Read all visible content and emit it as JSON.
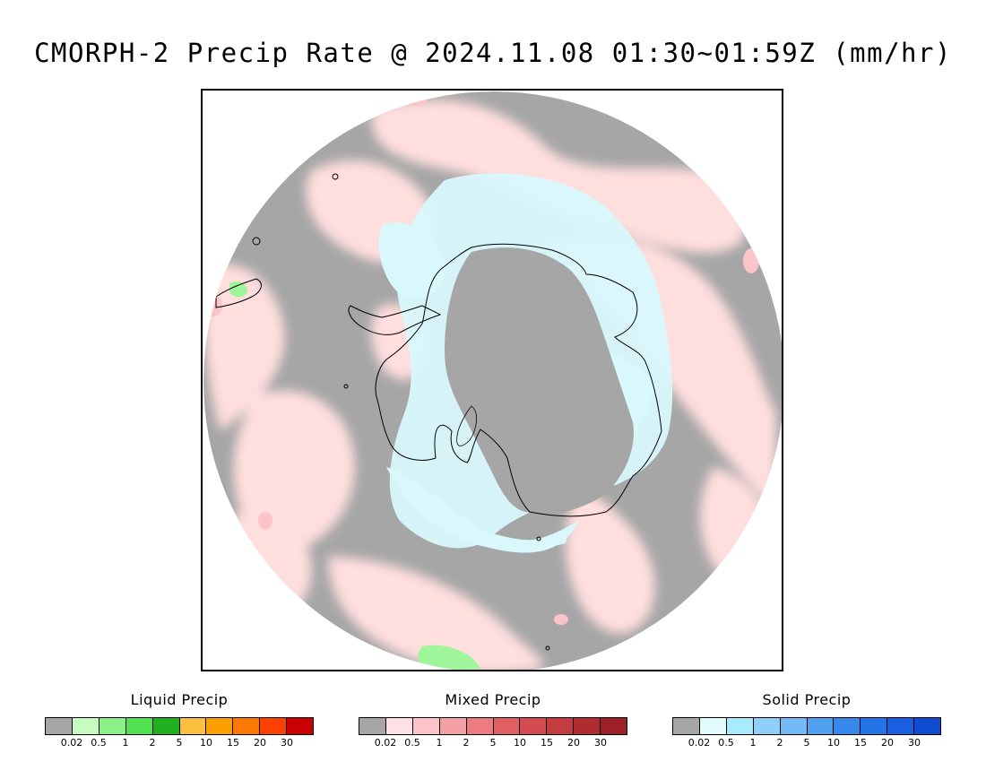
{
  "title": "CMORPH-2 Precip Rate @ 2024.11.08 01:30~01:59Z (mm/hr)",
  "map": {
    "projection": "south-polar-stereographic",
    "no_precip_color": "#a6a6a6",
    "background_color": "#ffffff",
    "coastline_color": "#000000",
    "light_mixed_color": "#ffdede",
    "light_solid_color": "#d8f8fc",
    "light_liquid_color": "#9ff59a"
  },
  "legends": [
    {
      "title": "Liquid Precip",
      "colors": [
        "#a6a6a6",
        "#c8fcc0",
        "#8cf088",
        "#50e050",
        "#20b020",
        "#fcc040",
        "#fca000",
        "#fc7800",
        "#fc4000",
        "#c80000"
      ],
      "ticks": [
        "0.02",
        "0.5",
        "1",
        "2",
        "5",
        "10",
        "15",
        "20",
        "30"
      ]
    },
    {
      "title": "Mixed Precip",
      "colors": [
        "#a6a6a6",
        "#ffe0e6",
        "#fcc4c8",
        "#f4a0a4",
        "#ec7c80",
        "#e06064",
        "#d44c50",
        "#c43c40",
        "#b02c30",
        "#9c2028"
      ],
      "ticks": [
        "0.02",
        "0.5",
        "1",
        "2",
        "5",
        "10",
        "15",
        "20",
        "30"
      ]
    },
    {
      "title": "Solid Precip",
      "colors": [
        "#a6a6a6",
        "#e0fcfc",
        "#a8ecfc",
        "#90d0f8",
        "#74b8f4",
        "#50a0f0",
        "#3888ec",
        "#2474e8",
        "#1860e0",
        "#104cd0"
      ],
      "ticks": [
        "0.02",
        "0.5",
        "1",
        "2",
        "5",
        "10",
        "15",
        "20",
        "30"
      ]
    }
  ]
}
